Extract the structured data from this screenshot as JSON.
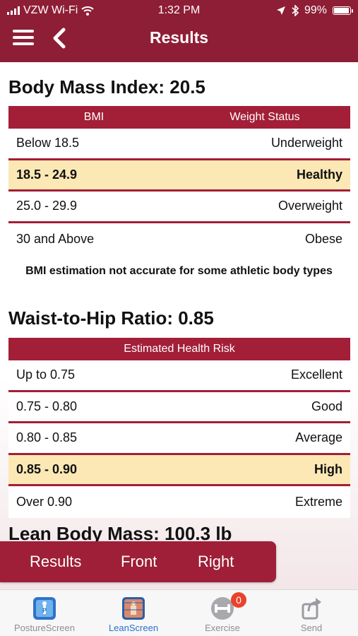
{
  "status_bar": {
    "carrier": "VZW Wi-Fi",
    "time": "1:32 PM",
    "battery": "99%"
  },
  "nav": {
    "title": "Results"
  },
  "bmi": {
    "title": "Body Mass Index: 20.5",
    "headers": [
      "BMI",
      "Weight Status"
    ],
    "rows": [
      {
        "range": "Below 18.5",
        "status": "Underweight",
        "highlight": false
      },
      {
        "range": "18.5 - 24.9",
        "status": "Healthy",
        "highlight": true
      },
      {
        "range": "25.0 - 29.9",
        "status": "Overweight",
        "highlight": false
      },
      {
        "range": "30 and Above",
        "status": "Obese",
        "highlight": false
      }
    ],
    "note": "BMI estimation not accurate for some athletic body types"
  },
  "whr": {
    "title": "Waist-to-Hip Ratio: 0.85",
    "header": "Estimated Health Risk",
    "rows": [
      {
        "range": "Up to 0.75",
        "status": "Excellent",
        "highlight": false
      },
      {
        "range": "0.75 - 0.80",
        "status": "Good",
        "highlight": false
      },
      {
        "range": "0.80 - 0.85",
        "status": "Average",
        "highlight": false
      },
      {
        "range": "0.85 - 0.90",
        "status": "High",
        "highlight": true
      },
      {
        "range": "Over 0.90",
        "status": "Extreme",
        "highlight": false
      }
    ]
  },
  "lbm": {
    "title": "Lean Body Mass: 100.3 lb"
  },
  "view_tabs": {
    "results": "Results",
    "front": "Front",
    "right": "Right"
  },
  "tabbar": {
    "items": [
      {
        "label": "PostureScreen",
        "icon": "posture-screen-icon",
        "active": false
      },
      {
        "label": "LeanScreen",
        "icon": "lean-screen-icon",
        "active": true
      },
      {
        "label": "Exercise",
        "icon": "dumbbell-icon",
        "active": false,
        "badge": "0"
      },
      {
        "label": "Send",
        "icon": "share-icon",
        "active": false
      }
    ]
  },
  "colors": {
    "brand": "#8e1e35",
    "table_header": "#a31e37",
    "highlight": "#fbe8b5",
    "active_tab": "#2a6fd0",
    "badge": "#e8432c"
  }
}
